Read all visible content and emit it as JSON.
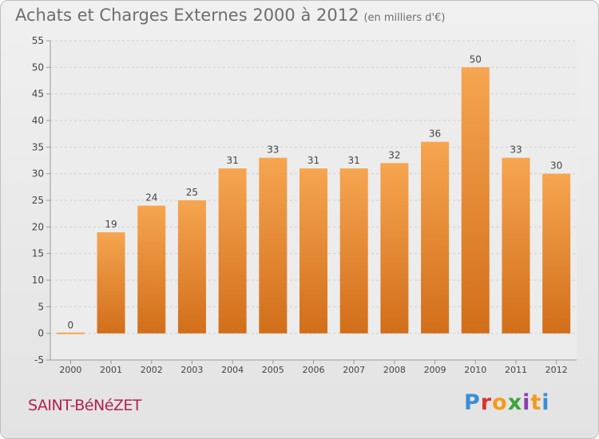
{
  "title": "Achats et Charges Externes 2000 à 2012",
  "subtitle": "(en milliers d'€)",
  "city": "SAINT-BéNéZET",
  "logo": {
    "text": "Proxiti",
    "colors": [
      "#3a8fd6",
      "#e0312b",
      "#f39a1a",
      "#3aa53a",
      "#8a3fb0",
      "#f39a1a",
      "#3a8fd6"
    ]
  },
  "colors": {
    "bar_top": "#f6a550",
    "bar_bottom": "#d26e1a",
    "grid": "#cfcfcf",
    "axis": "#9a9a9a",
    "text": "#444444"
  },
  "chart_data": {
    "type": "bar",
    "categories": [
      "2000",
      "2001",
      "2002",
      "2003",
      "2004",
      "2005",
      "2006",
      "2007",
      "2008",
      "2009",
      "2010",
      "2011",
      "2012"
    ],
    "values": [
      0,
      19,
      24,
      25,
      31,
      33,
      31,
      31,
      32,
      36,
      50,
      33,
      30
    ],
    "ylim": [
      -5,
      55
    ],
    "yticks": [
      -5,
      0,
      5,
      10,
      15,
      20,
      25,
      30,
      35,
      40,
      45,
      50,
      55
    ],
    "grid": true,
    "title": "Achats et Charges Externes 2000 à 2012",
    "xlabel": "",
    "ylabel": ""
  }
}
